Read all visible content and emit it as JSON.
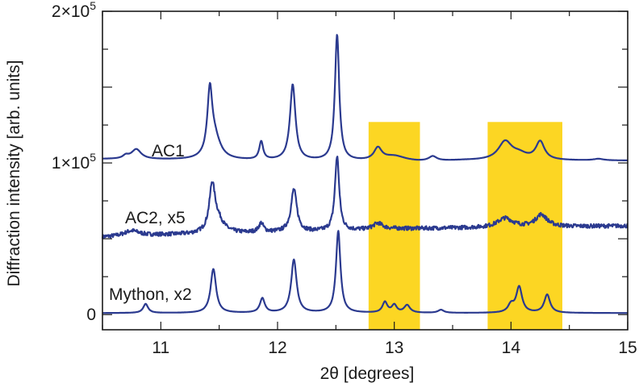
{
  "chart_data": {
    "type": "line",
    "xlabel": "2θ [degrees]",
    "ylabel": "Diffraction intensity [arb. units]",
    "xlim": [
      10.5,
      15
    ],
    "ylim": [
      -10000,
      200000
    ],
    "x_ticks": [
      {
        "value": 11,
        "label": "11"
      },
      {
        "value": 12,
        "label": "12"
      },
      {
        "value": 13,
        "label": "13"
      },
      {
        "value": 14,
        "label": "14"
      },
      {
        "value": 15,
        "label": "15"
      }
    ],
    "y_ticks": [
      {
        "value": 0,
        "base": "0",
        "exp": ""
      },
      {
        "value": 100000,
        "base": "1×10",
        "exp": "5"
      },
      {
        "value": 200000,
        "base": "2×10",
        "exp": "5"
      }
    ],
    "line_color": "#2b3a8f",
    "highlight_color": "#fcd623",
    "highlight_regions": [
      {
        "x0": 12.78,
        "x1": 13.22,
        "y0": -10000,
        "y1": 127000
      },
      {
        "x0": 13.8,
        "x1": 14.44,
        "y0": -10000,
        "y1": 127000
      }
    ],
    "series": [
      {
        "name": "AC1",
        "baseline": [
          [
            10.5,
            102500
          ],
          [
            12.6,
            101000
          ],
          [
            13.2,
            100500
          ],
          [
            13.6,
            101500
          ],
          [
            15,
            101500
          ]
        ],
        "noise": 0,
        "peaks": [
          {
            "x": 10.7,
            "h": 2000,
            "w": 0.03
          },
          {
            "x": 10.79,
            "h": 6500,
            "w": 0.05
          },
          {
            "x": 11.42,
            "h": 41000,
            "w": 0.025
          },
          {
            "x": 11.46,
            "h": 14000,
            "w": 0.06
          },
          {
            "x": 11.86,
            "h": 12000,
            "w": 0.02
          },
          {
            "x": 12.13,
            "h": 50000,
            "w": 0.028
          },
          {
            "x": 12.51,
            "h": 83000,
            "w": 0.022
          },
          {
            "x": 12.86,
            "h": 8000,
            "w": 0.04
          },
          {
            "x": 13.0,
            "h": 3500,
            "w": 0.12
          },
          {
            "x": 13.33,
            "h": 3000,
            "w": 0.04
          },
          {
            "x": 13.95,
            "h": 12000,
            "w": 0.07
          },
          {
            "x": 14.07,
            "h": 3500,
            "w": 0.08
          },
          {
            "x": 14.25,
            "h": 12000,
            "w": 0.045
          },
          {
            "x": 14.75,
            "h": 1000,
            "w": 0.05
          }
        ]
      },
      {
        "name": "AC2, x5",
        "baseline": [
          [
            10.5,
            51000
          ],
          [
            11.0,
            52500
          ],
          [
            12.5,
            55000
          ],
          [
            13.0,
            56500
          ],
          [
            14.0,
            57500
          ],
          [
            15,
            58500
          ]
        ],
        "noise": 1300,
        "peaks": [
          {
            "x": 10.75,
            "h": 3500,
            "w": 0.08
          },
          {
            "x": 11.44,
            "h": 30000,
            "w": 0.03
          },
          {
            "x": 11.49,
            "h": 8000,
            "w": 0.06
          },
          {
            "x": 11.86,
            "h": 6000,
            "w": 0.025
          },
          {
            "x": 12.14,
            "h": 28000,
            "w": 0.03
          },
          {
            "x": 12.51,
            "h": 49000,
            "w": 0.022
          },
          {
            "x": 12.86,
            "h": 4000,
            "w": 0.05
          },
          {
            "x": 13.95,
            "h": 6000,
            "w": 0.08
          },
          {
            "x": 14.26,
            "h": 8000,
            "w": 0.06
          }
        ]
      },
      {
        "name": "Mython, x2",
        "baseline": [
          [
            10.5,
            1000
          ],
          [
            15,
            1000
          ]
        ],
        "noise": 0,
        "peaks": [
          {
            "x": 10.87,
            "h": 6000,
            "w": 0.025
          },
          {
            "x": 11.45,
            "h": 29000,
            "w": 0.028
          },
          {
            "x": 11.87,
            "h": 9500,
            "w": 0.025
          },
          {
            "x": 12.14,
            "h": 35000,
            "w": 0.028
          },
          {
            "x": 12.52,
            "h": 54000,
            "w": 0.023
          },
          {
            "x": 12.92,
            "h": 7000,
            "w": 0.025
          },
          {
            "x": 13.0,
            "h": 5000,
            "w": 0.025
          },
          {
            "x": 13.11,
            "h": 5000,
            "w": 0.03
          },
          {
            "x": 13.4,
            "h": 2000,
            "w": 0.03
          },
          {
            "x": 14.0,
            "h": 5000,
            "w": 0.03
          },
          {
            "x": 14.07,
            "h": 17000,
            "w": 0.03
          },
          {
            "x": 14.31,
            "h": 12000,
            "w": 0.03
          }
        ]
      }
    ]
  }
}
